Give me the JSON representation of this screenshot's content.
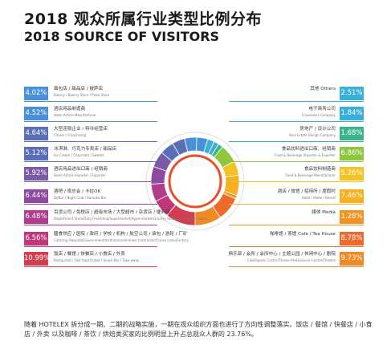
{
  "title_cn": "2018 观众所属行业类型比例分布",
  "title_en": "2018 SOURCE OF VISITORS",
  "footer": "随着 HOTELEX 拆分成一期、二期的战略实施，一期在观众组织方面也进行了方向性调整落实。饭店 / 餐馆 / 快餐店 / 小食店 / 外卖 以及咖啡 / 茶饮 / 烘焙类买家的比例明显上升占总观众人群的 23.76%。",
  "colors": {
    "left": [
      "#4a90d9",
      "#4a90d9",
      "#5b6fb8",
      "#5b6fb8",
      "#7b5aa6",
      "#8e4aa0",
      "#b03c8e",
      "#c2377a",
      "#d23d4f"
    ],
    "right": [
      "#3ab0d8",
      "#3ab0d8",
      "#3cb58f",
      "#8dc63f",
      "#f3c323",
      "#f6b021",
      "#f39422",
      "#ec6a2c",
      "#f08a24"
    ]
  },
  "chart_data": {
    "type": "donut",
    "segments": [
      {
        "side": "left",
        "value_text": "4.02%",
        "cn": "面包店 / 甜品店 / 披萨店",
        "en": "Bakery / Bakery Store / Pizza Store"
      },
      {
        "side": "left",
        "value_text": "4.52%",
        "cn": "酒店用品制造商",
        "en": "Hotel Article Manufacturer"
      },
      {
        "side": "left",
        "value_text": "4.64%",
        "cn": "大型连锁企业 / 特许经营店",
        "en": "Chains / Franchising"
      },
      {
        "side": "left",
        "value_text": "5.12%",
        "cn": "冰淇淋、巧克力专卖店 / 甜品店",
        "en": "Ice Cream / Chocolate / Sweets"
      },
      {
        "side": "left",
        "value_text": "5.92%",
        "cn": "酒店用品进出口商 / 经销商",
        "en": "Hotel Article Importer / Exporter"
      },
      {
        "side": "left",
        "value_text": "6.44%",
        "cn": "酒吧 / 夜总会 / 卡拉OK",
        "en": "DJ/Bar / Night Club / Karaoke Bar"
      },
      {
        "side": "left",
        "value_text": "6.48%",
        "cn": "百货公司 / 免税店 / 超级市场 / 大型超市 / 杂货店 / 便利店",
        "en": "Department Store/Duty Free/Shop/Supermarket/Hypermarket/Grocery Store/Convenience Store"
      },
      {
        "side": "left",
        "value_text": "6.56%",
        "cn": "膳食供应 / 医院 / 政府 / 学校 / 机构 / 航空公司 / 承包 / 游轮 / 厂矿",
        "en": "Catering /Hospital/Government/Institutions/Airlines/ Contractor/Cruise Lines/Factory"
      },
      {
        "side": "left",
        "value_text": "10.99%",
        "cn": "饭店 / 餐馆 / 快餐店 / 小食店 / 外卖",
        "en": "Restaurant / Fast food Outlet / Snack Bar / Take-away"
      },
      {
        "side": "right",
        "value_text": "2.51%",
        "cn": "其他 Others",
        "en": ""
      },
      {
        "side": "right",
        "value_text": "1.84%",
        "cn": "电子商务公司",
        "en": "E-business Company"
      },
      {
        "side": "right",
        "value_text": "1.68%",
        "cn": "房地产 / 设计公司",
        "en": "Real Estate Design Company"
      },
      {
        "side": "right",
        "value_text": "6.86%",
        "cn": "食品饮料进出口商、经销商",
        "en": "Food & Beverage Importer & Exporter"
      },
      {
        "side": "right",
        "value_text": "5.26%",
        "cn": "食品饮料制造商",
        "en": "Food & Beverage Manufacturer"
      },
      {
        "side": "right",
        "value_text": "7.46%",
        "cn": "酒店 / 旅馆 / 招待所 / 度假村",
        "en": "Hotel / Motel / Resort"
      },
      {
        "side": "right",
        "value_text": "1.28%",
        "cn": "媒体 Media",
        "en": ""
      },
      {
        "side": "right",
        "value_text": "8.78%",
        "cn": "咖啡馆 / 茶馆 Cafe / Tea House",
        "en": ""
      },
      {
        "side": "right",
        "value_text": "9.73%",
        "cn": "俱乐部 / 会所 / 会所中心 / 主题公园 / 休闲中心 / 剧院",
        "en": "Club/Sports Centre/Theme Park/Leisure Centre/Theatre"
      }
    ],
    "values": [
      4.02,
      4.52,
      4.64,
      5.12,
      5.92,
      6.44,
      6.48,
      6.56,
      10.99,
      2.51,
      1.84,
      1.68,
      6.86,
      5.26,
      7.46,
      1.28,
      8.78,
      9.73
    ]
  }
}
